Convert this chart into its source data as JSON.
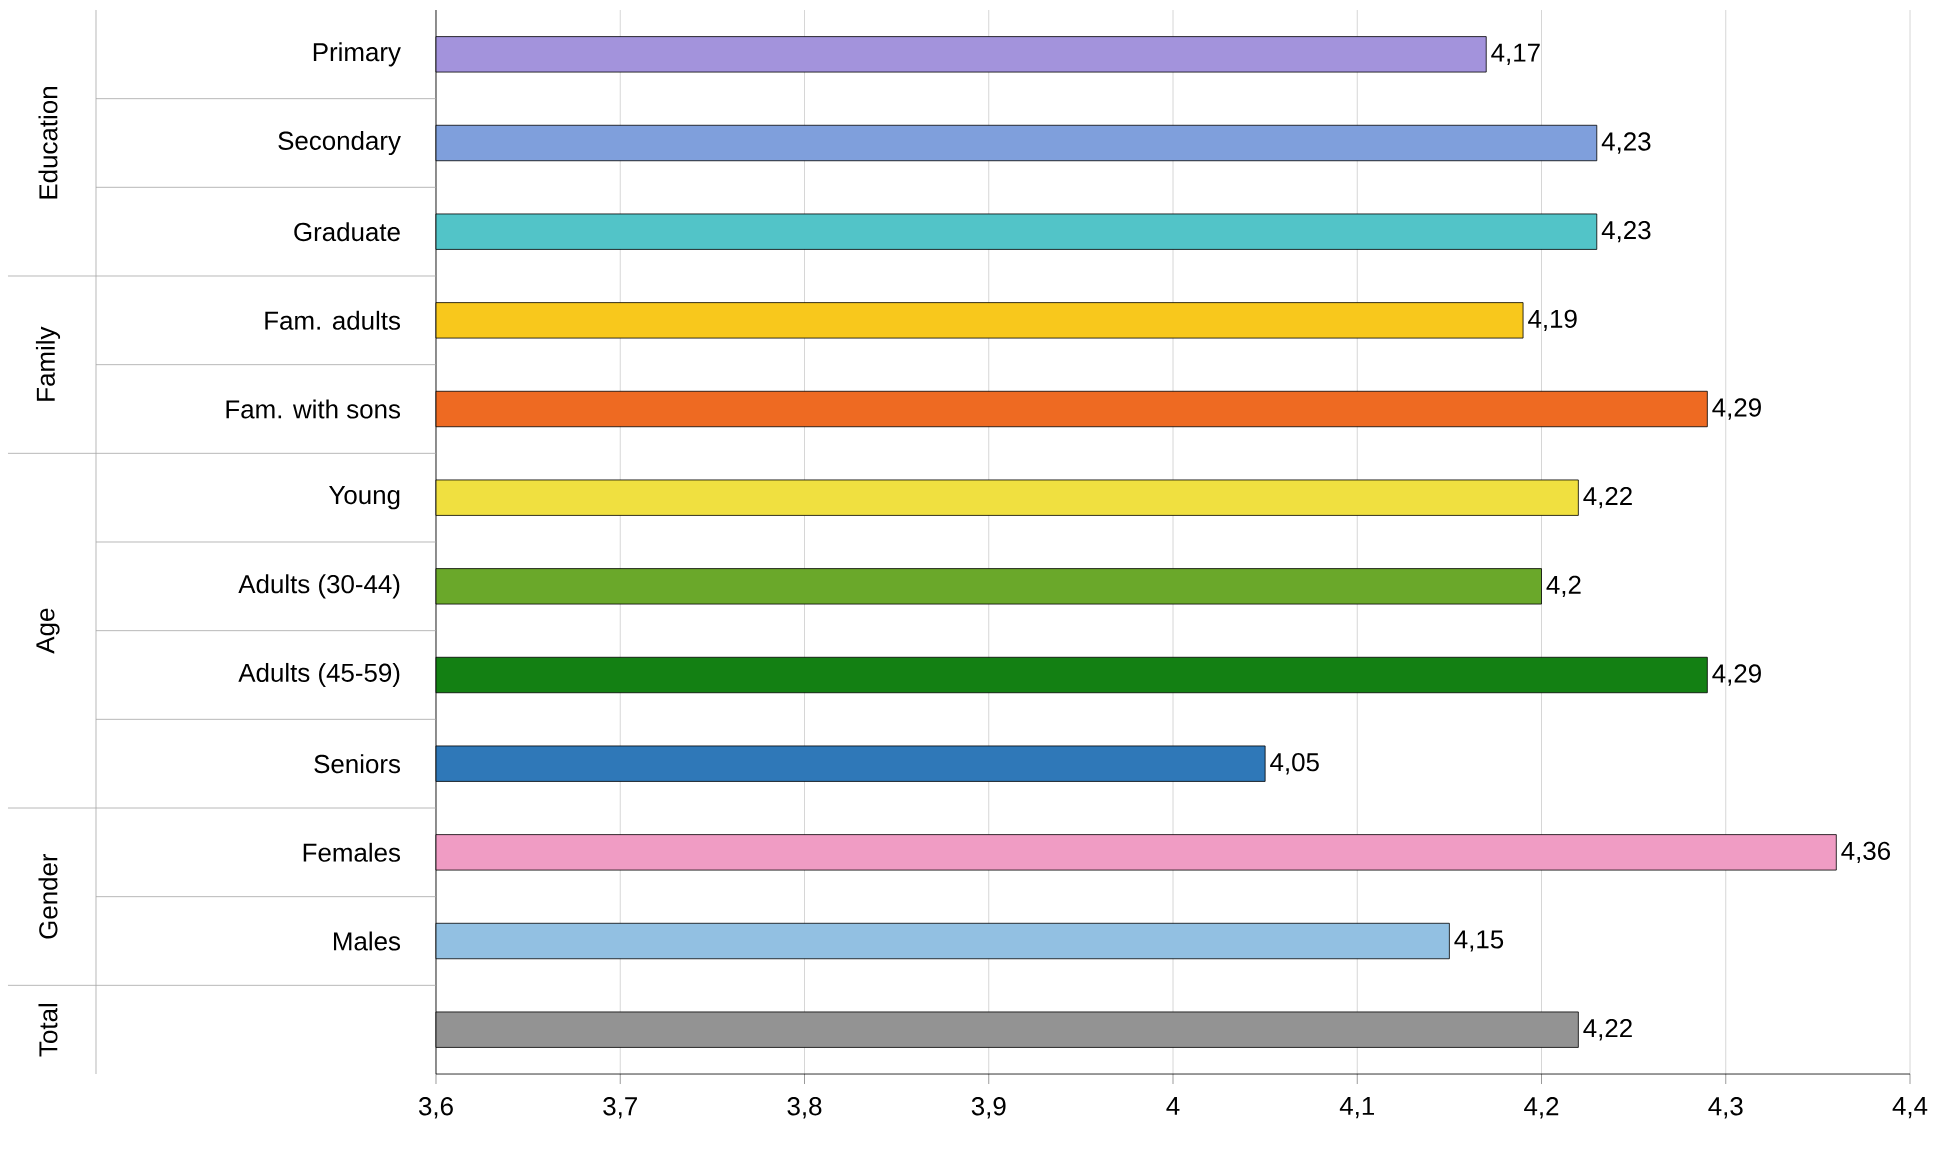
{
  "chart_data": {
    "type": "bar",
    "orientation": "horizontal",
    "categories": [
      "Primary",
      "Secondary",
      "Graduate",
      "Fam. adults",
      "Fam. with sons",
      "Young",
      "Adults (30-44)",
      "Adults (45-59)",
      "Seniors",
      "Females",
      "Males",
      null
    ],
    "values": [
      4.17,
      4.23,
      4.23,
      4.19,
      4.29,
      4.22,
      4.2,
      4.29,
      4.05,
      4.36,
      4.15,
      4.22
    ],
    "value_labels": [
      "4,17",
      "4,23",
      "4,23",
      "4,19",
      "4,29",
      "4,22",
      "4,2",
      "4,29",
      "4,05",
      "4,36",
      "4,15",
      "4,22"
    ],
    "colors": [
      "#a393dc",
      "#7f9fdc",
      "#52c4c8",
      "#f8c81c",
      "#ee6a22",
      "#f0e040",
      "#6aa82a",
      "#138013",
      "#2f78b8",
      "#f09cc4",
      "#92c0e2",
      "#939393"
    ],
    "xlim": [
      3.6,
      4.4
    ],
    "xticks": [
      {
        "value": 3.6,
        "label": "3,6"
      },
      {
        "value": 3.7,
        "label": "3,7"
      },
      {
        "value": 3.8,
        "label": "3,8"
      },
      {
        "value": 3.9,
        "label": "3,9"
      },
      4,
      {
        "value": 4.1,
        "label": "4,1"
      },
      {
        "value": 4.2,
        "label": "4,2"
      },
      {
        "value": 4.3,
        "label": "4,3"
      },
      {
        "value": 4.4,
        "label": "4,4"
      }
    ],
    "grid": "x",
    "annotations": [
      "Education",
      "Family",
      "Age",
      "Gender",
      "Total"
    ]
  }
}
